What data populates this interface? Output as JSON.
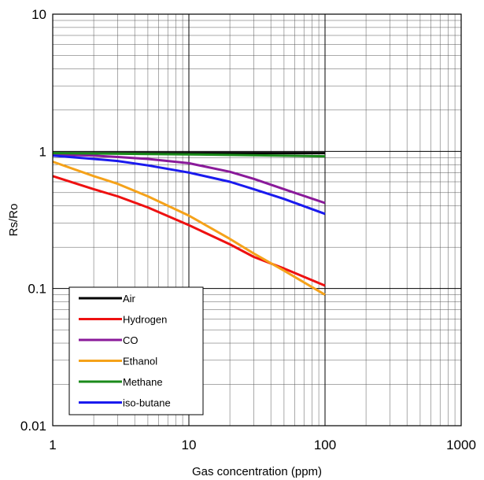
{
  "chart_data": {
    "type": "line",
    "title": "",
    "xlabel": "Gas concentration (ppm)",
    "ylabel": "Rs/Ro",
    "x_scale": "log",
    "y_scale": "log",
    "xlim": [
      1,
      1000
    ],
    "ylim": [
      0.01,
      10
    ],
    "x_ticks": [
      "1",
      "10",
      "100",
      "1000"
    ],
    "y_ticks": [
      "0.01",
      "0.1",
      "1",
      "10"
    ],
    "grid": true,
    "legend_position": "bottom-left",
    "series": [
      {
        "name": "Air",
        "color": "#000000",
        "x": [
          1,
          100
        ],
        "y": [
          0.97,
          0.97
        ]
      },
      {
        "name": "Hydrogen",
        "color": "#ee1111",
        "x": [
          1,
          2,
          3,
          5,
          10,
          20,
          30,
          50,
          100
        ],
        "y": [
          0.66,
          0.53,
          0.47,
          0.39,
          0.29,
          0.21,
          0.17,
          0.14,
          0.105
        ]
      },
      {
        "name": "CO",
        "color": "#8a1a9a",
        "x": [
          1,
          2,
          3,
          5,
          10,
          20,
          30,
          50,
          100
        ],
        "y": [
          0.95,
          0.93,
          0.91,
          0.88,
          0.82,
          0.71,
          0.63,
          0.53,
          0.42
        ]
      },
      {
        "name": "Ethanol",
        "color": "#f5a21a",
        "x": [
          1,
          2,
          3,
          5,
          10,
          20,
          30,
          50,
          100
        ],
        "y": [
          0.84,
          0.66,
          0.58,
          0.47,
          0.34,
          0.23,
          0.18,
          0.135,
          0.09
        ]
      },
      {
        "name": "Methane",
        "color": "#1a8a1a",
        "x": [
          1,
          10,
          100
        ],
        "y": [
          0.97,
          0.95,
          0.92
        ]
      },
      {
        "name": "iso-butane",
        "color": "#1a1aee",
        "x": [
          1,
          2,
          3,
          5,
          10,
          20,
          30,
          50,
          100
        ],
        "y": [
          0.93,
          0.88,
          0.85,
          0.79,
          0.7,
          0.6,
          0.53,
          0.45,
          0.35
        ]
      }
    ]
  }
}
